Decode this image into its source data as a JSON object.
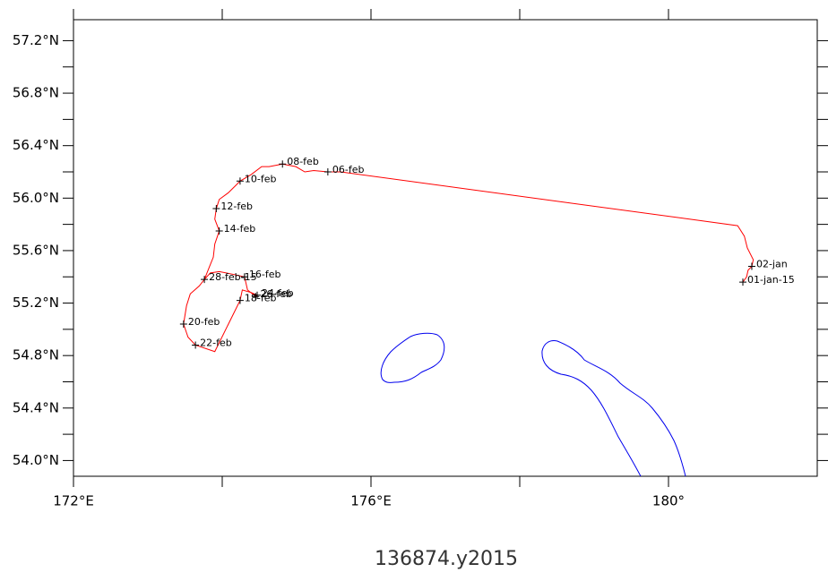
{
  "chart_data": {
    "type": "map",
    "title": "136874.y2015",
    "xlim": [
      172,
      182
    ],
    "ylim": [
      53.88,
      57.36
    ],
    "xticks": [
      {
        "value": 172,
        "label": "172°E"
      },
      {
        "value": 176,
        "label": "176°E"
      },
      {
        "value": 180,
        "label": "180°"
      }
    ],
    "xminorticks": [
      174,
      178
    ],
    "yticks": [
      {
        "value": 54.0,
        "label": "54.0°N"
      },
      {
        "value": 54.4,
        "label": "54.4°N"
      },
      {
        "value": 54.8,
        "label": "54.8°N"
      },
      {
        "value": 55.2,
        "label": "55.2°N"
      },
      {
        "value": 55.6,
        "label": "55.6°N"
      },
      {
        "value": 56.0,
        "label": "56.0°N"
      },
      {
        "value": 56.4,
        "label": "56.4°N"
      },
      {
        "value": 56.8,
        "label": "56.8°N"
      },
      {
        "value": 57.2,
        "label": "57.2°N"
      }
    ],
    "yminorticks": [
      54.2,
      54.6,
      55.0,
      55.4,
      55.8,
      56.2,
      56.6,
      57.0
    ],
    "track": {
      "color": "#ff0000",
      "x": [
        181.0,
        181.05,
        181.07,
        181.12,
        181.14,
        181.06,
        181.02,
        180.93,
        175.59,
        175.42,
        175.23,
        175.11,
        174.99,
        174.81,
        174.63,
        174.53,
        174.39,
        174.24,
        174.17,
        174.08,
        173.96,
        173.92,
        173.9,
        173.96,
        173.9,
        173.88,
        173.83,
        173.76,
        173.69,
        173.57,
        173.52,
        173.48,
        173.54,
        173.64,
        173.9,
        174.24,
        174.27,
        174.39,
        174.47,
        174.45,
        174.34,
        174.3,
        174.14,
        173.96,
        173.84,
        173.76
      ],
      "y": [
        55.36,
        55.4,
        55.45,
        55.48,
        55.53,
        55.62,
        55.71,
        55.79,
        56.2,
        56.2,
        56.21,
        56.2,
        56.24,
        56.26,
        56.24,
        56.24,
        56.18,
        56.13,
        56.09,
        56.04,
        55.99,
        55.92,
        55.84,
        55.75,
        55.65,
        55.55,
        55.48,
        55.38,
        55.33,
        55.27,
        55.18,
        55.04,
        54.94,
        54.88,
        54.83,
        55.22,
        55.3,
        55.28,
        55.26,
        55.25,
        55.3,
        55.4,
        55.42,
        55.44,
        55.43,
        55.38
      ]
    },
    "points": {
      "x": [
        181.0,
        181.12,
        175.42,
        174.81,
        174.24,
        173.92,
        173.96,
        174.3,
        174.24,
        173.48,
        173.64,
        174.47,
        174.45,
        173.76
      ],
      "y": [
        55.36,
        55.48,
        56.2,
        56.26,
        56.13,
        55.92,
        55.75,
        55.4,
        55.22,
        55.04,
        54.88,
        55.26,
        55.25,
        55.38
      ],
      "labels": [
        "01-jan-15",
        "02-jan",
        "06-feb",
        "08-feb",
        "10-feb",
        "12-feb",
        "14-feb",
        "16-feb",
        "18-feb",
        "20-feb",
        "22-feb",
        "24-feb",
        "26-feb",
        "28-feb-15"
      ],
      "colors": [
        "#00dd00",
        "#000000",
        "#000000",
        "#000000",
        "#000000",
        "#000000",
        "#000000",
        "#000000",
        "#000000",
        "#000000",
        "#000000",
        "#000000",
        "#000000",
        "#dd0000"
      ]
    }
  }
}
